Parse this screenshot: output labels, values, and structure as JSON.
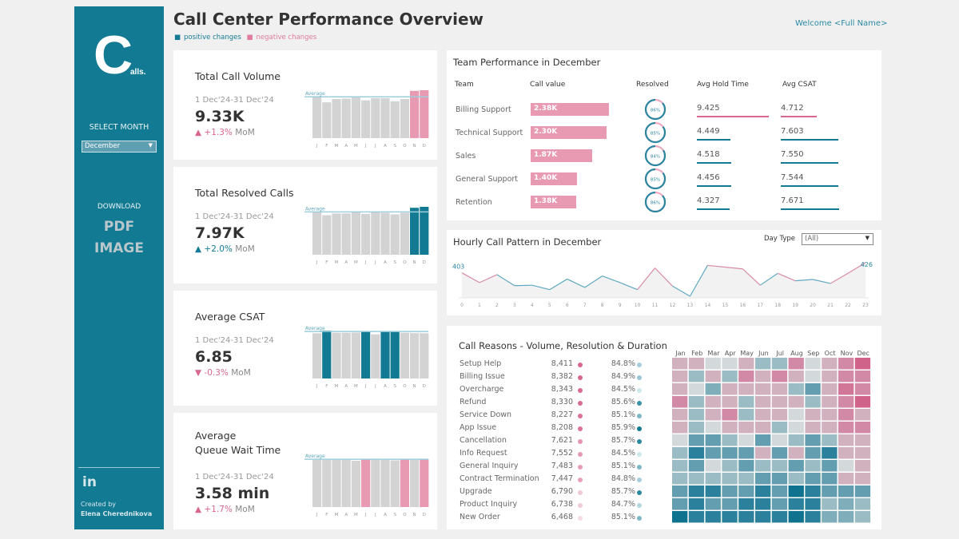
{
  "brand": {
    "logo_letter": "C",
    "logo_suffix": "alls."
  },
  "sidebar": {
    "select_month_label": "SELECT MONTH",
    "month_value": "December",
    "download_label": "DOWNLOAD",
    "pdf_label": "PDF",
    "image_label": "IMAGE",
    "linkedin_label": "in",
    "created_by_label": "Created by",
    "author": "Elena Cherednikova"
  },
  "header": {
    "title": "Call Center Performance Overview",
    "legend_positive": "positive changes",
    "legend_negative": "negative changes",
    "welcome": "Welcome <Full Name>"
  },
  "colors": {
    "teal": "#137a93",
    "pink": "#e89ab3",
    "pink_strong": "#d9668e",
    "grey_bar": "#d3d3d3",
    "sidebar": "#137a93"
  },
  "kpis": [
    {
      "title": "Total Call Volume",
      "period": "1 Dec'24-31 Dec'24",
      "value": "9.33K",
      "change": "+1.3%",
      "mom": "MoM",
      "direction": "up",
      "sentiment": "negative"
    },
    {
      "title": "Total Resolved Calls",
      "period": "1 Dec'24-31 Dec'24",
      "value": "7.97K",
      "change": "+2.0%",
      "mom": "MoM",
      "direction": "up",
      "sentiment": "positive"
    },
    {
      "title": "Average CSAT",
      "period": "1 Dec'24-31 Dec'24",
      "value": "6.85",
      "change": "-0.3%",
      "mom": "MoM",
      "direction": "down",
      "sentiment": "negative"
    },
    {
      "title": "Average\nQueue Wait Time",
      "period": "1 Dec'24-31 Dec'24",
      "value": "3.58 min",
      "change": "+1.7%",
      "mom": "MoM",
      "direction": "up",
      "sentiment": "negative"
    }
  ],
  "team": {
    "title": "Team Performance in December",
    "headers": [
      "Team",
      "Call value",
      "Resolved",
      "Avg Hold Time",
      "Avg CSAT"
    ],
    "rows": [
      {
        "team": "Billing Support",
        "calls": 2.38,
        "calls_label": "2.38K",
        "resolved": 86,
        "resolved_label": "86%",
        "hold": "9.425",
        "csat": "4.712",
        "hold_flag": "negative",
        "csat_flag": "negative"
      },
      {
        "team": "Technical Support",
        "calls": 2.3,
        "calls_label": "2.30K",
        "resolved": 85,
        "resolved_label": "85%",
        "hold": "4.449",
        "csat": "7.603",
        "hold_flag": "positive",
        "csat_flag": "positive"
      },
      {
        "team": "Sales",
        "calls": 1.87,
        "calls_label": "1.87K",
        "resolved": 84,
        "resolved_label": "84%",
        "hold": "4.518",
        "csat": "7.550",
        "hold_flag": "positive",
        "csat_flag": "positive"
      },
      {
        "team": "General Support",
        "calls": 1.4,
        "calls_label": "1.40K",
        "resolved": 85,
        "resolved_label": "85%",
        "hold": "4.456",
        "csat": "7.544",
        "hold_flag": "positive",
        "csat_flag": "positive"
      },
      {
        "team": "Retention",
        "calls": 1.38,
        "calls_label": "1.38K",
        "resolved": 86,
        "resolved_label": "86%",
        "hold": "4.327",
        "csat": "7.671",
        "hold_flag": "positive",
        "csat_flag": "positive"
      }
    ]
  },
  "hourly": {
    "title": "Hourly Call Pattern in December",
    "day_type_label": "Day Type",
    "day_type_value": "(All)",
    "first_label": "403",
    "last_label": "426"
  },
  "reasons": {
    "title": "Call Reasons - Volume, Resolution & Duration",
    "rows": [
      {
        "name": "Setup Help",
        "volume": 8411,
        "volume_label": "8,411",
        "resolution": 84.8,
        "resolution_label": "84.8%"
      },
      {
        "name": "Billing Issue",
        "volume": 8382,
        "volume_label": "8,382",
        "resolution": 84.9,
        "resolution_label": "84.9%"
      },
      {
        "name": "Overcharge",
        "volume": 8343,
        "volume_label": "8,343",
        "resolution": 84.5,
        "resolution_label": "84.5%"
      },
      {
        "name": "Refund",
        "volume": 8330,
        "volume_label": "8,330",
        "resolution": 85.6,
        "resolution_label": "85.6%"
      },
      {
        "name": "Service Down",
        "volume": 8227,
        "volume_label": "8,227",
        "resolution": 85.1,
        "resolution_label": "85.1%"
      },
      {
        "name": "App Issue",
        "volume": 8208,
        "volume_label": "8,208",
        "resolution": 85.9,
        "resolution_label": "85.9%"
      },
      {
        "name": "Cancellation",
        "volume": 7621,
        "volume_label": "7,621",
        "resolution": 85.7,
        "resolution_label": "85.7%"
      },
      {
        "name": "Info Request",
        "volume": 7552,
        "volume_label": "7,552",
        "resolution": 84.5,
        "resolution_label": "84.5%"
      },
      {
        "name": "General Inquiry",
        "volume": 7483,
        "volume_label": "7,483",
        "resolution": 85.1,
        "resolution_label": "85.1%"
      },
      {
        "name": "Contract Termination",
        "volume": 7447,
        "volume_label": "7,447",
        "resolution": 84.8,
        "resolution_label": "84.8%"
      },
      {
        "name": "Upgrade",
        "volume": 6790,
        "volume_label": "6,790",
        "resolution": 85.7,
        "resolution_label": "85.7%"
      },
      {
        "name": "Product Inquiry",
        "volume": 6738,
        "volume_label": "6,738",
        "resolution": 84.7,
        "resolution_label": "84.7%"
      },
      {
        "name": "New Order",
        "volume": 6468,
        "volume_label": "6,468",
        "resolution": 85.1,
        "resolution_label": "85.1%"
      }
    ]
  },
  "chart_data": [
    {
      "type": "bar",
      "name": "Total Call Volume by month",
      "categories": [
        "J",
        "F",
        "M",
        "A",
        "M",
        "J",
        "J",
        "A",
        "S",
        "O",
        "N",
        "D"
      ],
      "values": [
        8.05,
        6.98,
        7.62,
        7.7,
        7.92,
        7.36,
        7.79,
        7.79,
        7.19,
        7.62,
        9.21,
        9.33
      ],
      "unit": "K",
      "average": 8.05,
      "average_label": "Average",
      "highlight": [
        10,
        11
      ],
      "highlight_color": "#e89ab3"
    },
    {
      "type": "bar",
      "name": "Total Resolved Calls by month",
      "categories": [
        "J",
        "F",
        "M",
        "A",
        "M",
        "J",
        "J",
        "A",
        "S",
        "O",
        "N",
        "D"
      ],
      "values": [
        7.13,
        6.58,
        6.87,
        6.87,
        7.13,
        6.8,
        7.13,
        6.97,
        6.71,
        6.97,
        7.81,
        7.97
      ],
      "unit": "K",
      "average": 7.13,
      "average_label": "Average",
      "highlight": [
        10,
        11
      ],
      "highlight_color": "#137a93"
    },
    {
      "type": "bar",
      "name": "Average CSAT by month",
      "categories": [
        "J",
        "F",
        "M",
        "A",
        "M",
        "J",
        "J",
        "A",
        "S",
        "O",
        "N",
        "D"
      ],
      "values": [
        6.85,
        7.25,
        6.92,
        6.92,
        6.95,
        7.08,
        6.68,
        7.08,
        7.08,
        6.92,
        6.87,
        6.85
      ],
      "average": 7.12,
      "average_label": "Average",
      "highlight": [
        1,
        5,
        7,
        8
      ],
      "highlight_color": "#137a93"
    },
    {
      "type": "bar",
      "name": "Average Queue Wait Time by month",
      "categories": [
        "J",
        "F",
        "M",
        "A",
        "M",
        "J",
        "J",
        "A",
        "S",
        "O",
        "N",
        "D"
      ],
      "values": [
        3.52,
        3.52,
        3.52,
        3.52,
        3.46,
        3.58,
        3.57,
        3.52,
        3.49,
        3.58,
        3.52,
        3.58
      ],
      "unit": "min",
      "average": 3.57,
      "average_label": "Average",
      "highlight": [
        5,
        9,
        11
      ],
      "highlight_color": "#e89ab3"
    },
    {
      "type": "line",
      "name": "Hourly Call Pattern",
      "x": [
        0,
        1,
        2,
        3,
        4,
        5,
        6,
        7,
        8,
        9,
        10,
        11,
        12,
        13,
        14,
        15,
        16,
        17,
        18,
        19,
        20,
        21,
        22,
        23
      ],
      "values": [
        403,
        381,
        399,
        374,
        375,
        365,
        389,
        370,
        396,
        381,
        365,
        414,
        373,
        350,
        420,
        416,
        412,
        375,
        402,
        385,
        388,
        379,
        402,
        426
      ],
      "labels": {
        "first": "403",
        "last": "426"
      }
    },
    {
      "type": "heatmap",
      "name": "Call Reasons by month",
      "x_categories": [
        "Jan",
        "Feb",
        "Mar",
        "Apr",
        "May",
        "Jun",
        "Jul",
        "Aug",
        "Sep",
        "Oct",
        "Nov",
        "Dec"
      ],
      "y_categories": [
        "Setup Help",
        "Billing Issue",
        "Overcharge",
        "Refund",
        "Service Down",
        "App Issue",
        "Cancellation",
        "Info Request",
        "General Inquiry",
        "Contract Termination",
        "Upgrade",
        "Product Inquiry",
        "New Order"
      ],
      "values": [
        [
          1,
          1,
          0,
          0,
          1,
          -1,
          -1,
          2,
          0,
          1,
          2,
          3
        ],
        [
          1,
          -1,
          1,
          -1,
          2,
          1,
          2,
          1,
          0,
          1,
          2,
          2
        ],
        [
          1,
          0,
          -1.5,
          1,
          1,
          1,
          1,
          -1,
          -2,
          1,
          2.5,
          2
        ],
        [
          2,
          -1,
          1,
          1,
          -1,
          1,
          1,
          1,
          -1,
          1,
          2,
          3
        ],
        [
          1,
          -1,
          1,
          2,
          -1,
          1,
          1,
          0,
          1,
          1,
          2,
          1
        ],
        [
          1,
          -1,
          0,
          1,
          1,
          1,
          -1,
          0,
          1,
          1,
          2,
          2
        ],
        [
          0,
          -2,
          -2,
          -1,
          0,
          -2,
          0,
          -1,
          -2,
          -1,
          1,
          1
        ],
        [
          -1,
          -3,
          -2,
          -2,
          -2,
          1,
          -2,
          1,
          -2,
          -3,
          1,
          1
        ],
        [
          -1,
          -2,
          0,
          -1,
          -2,
          -1,
          -1,
          -2,
          -1,
          -2,
          0,
          1
        ],
        [
          -1,
          -1,
          -1,
          -1,
          -1,
          -2,
          -2,
          -1,
          -2,
          -2,
          1,
          1
        ],
        [
          -2,
          -3,
          -3,
          -2,
          -2,
          -3,
          -2,
          -3.5,
          -3,
          -2,
          -2,
          -2
        ],
        [
          -2,
          -3,
          -2,
          -2,
          -3,
          -3,
          -2,
          -3,
          -3,
          -1,
          -1.5,
          -1
        ],
        [
          -3.5,
          -3,
          -3,
          -3,
          -3,
          -3,
          -3,
          -3.5,
          -3,
          -1.5,
          -1.5,
          -1
        ]
      ]
    }
  ]
}
